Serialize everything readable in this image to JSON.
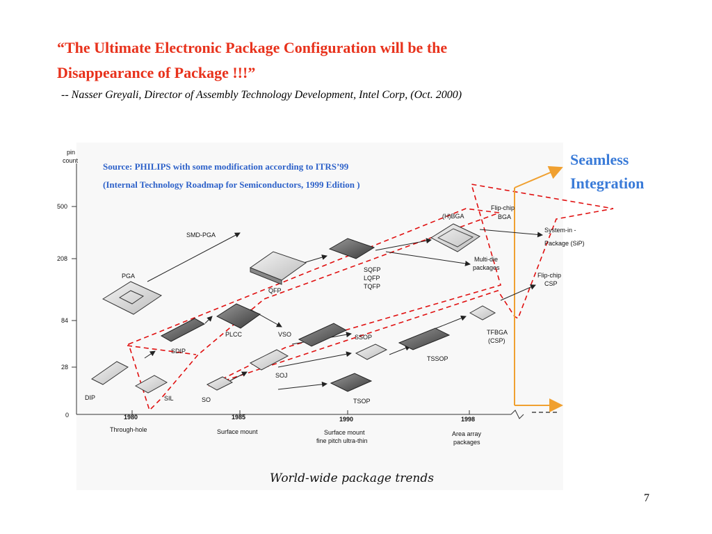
{
  "quote": {
    "line1": "“The Ultimate Electronic Package Configuration will be the",
    "line2": "Disappearance of Package !!!”",
    "attribution": "-- Nasser Greyali, Director of Assembly Technology Development, Intel Corp, (Oct. 2000)"
  },
  "source": {
    "line1": "Source: PHILIPS with some modification according to  ITRS’99",
    "line2": "(Internal Technology Roadmap for Semiconductors, 1999 Edition )"
  },
  "seamless": {
    "line1": "Seamless",
    "line2": "Integration"
  },
  "diagram": {
    "y_axis_title_1": "pin",
    "y_axis_title_2": "count",
    "y_ticks": [
      "500",
      "208",
      "84",
      "28",
      "0"
    ],
    "x_ticks": [
      "1980",
      "1985",
      "1990",
      "1998"
    ],
    "x_sub_1980": "Through-hole",
    "x_sub_1985": "Surface mount",
    "x_sub_1990_1": "Surface mount",
    "x_sub_1990_2": "fine pitch ultra-thin",
    "x_sub_1998_1": "Area array",
    "x_sub_1998_2": "packages",
    "packages": {
      "dip": "DIP",
      "sil": "SIL",
      "so": "SO",
      "soj": "SOJ",
      "tsop": "TSOP",
      "sdip": "SDIP",
      "plcc": "PLCC",
      "vso": "VSO",
      "ssop": "SSOP",
      "tssop": "TSSOP",
      "pga": "PGA",
      "smd_pga": "SMD-PGA",
      "qfp": "QFP",
      "sqfp": "SQFP",
      "lqfp": "LQFP",
      "tqfp": "TQFP",
      "hbga": "(H)BGA",
      "flipchip_bga_1": "Flip-chip",
      "flipchip_bga_2": "BGA",
      "multidie_1": "Multi-die",
      "multidie_2": "packages",
      "flipchip_csp_1": "Flip-chip",
      "flipchip_csp_2": "CSP",
      "tfbga_1": "TFBGA",
      "tfbga_2": "(CSP)",
      "sip_1": "System-in -",
      "sip_2": "Package (SiP)"
    },
    "caption": "World-wide package trends"
  },
  "page_number": "7",
  "colors": {
    "quote": "#e8321c",
    "source": "#2e62c9",
    "seamless": "#3a7bd8",
    "orange_arrow": "#f0a030",
    "dashed": "#e01010"
  }
}
